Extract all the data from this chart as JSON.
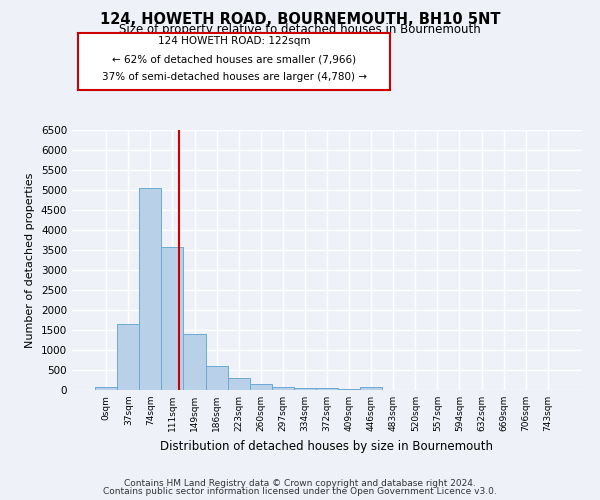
{
  "title": "124, HOWETH ROAD, BOURNEMOUTH, BH10 5NT",
  "subtitle": "Size of property relative to detached houses in Bournemouth",
  "xlabel": "Distribution of detached houses by size in Bournemouth",
  "ylabel": "Number of detached properties",
  "bar_labels": [
    "0sqm",
    "37sqm",
    "74sqm",
    "111sqm",
    "149sqm",
    "186sqm",
    "223sqm",
    "260sqm",
    "297sqm",
    "334sqm",
    "372sqm",
    "409sqm",
    "446sqm",
    "483sqm",
    "520sqm",
    "557sqm",
    "594sqm",
    "632sqm",
    "669sqm",
    "706sqm",
    "743sqm"
  ],
  "bar_values": [
    75,
    1650,
    5050,
    3570,
    1390,
    600,
    290,
    140,
    80,
    55,
    40,
    30,
    70,
    0,
    0,
    0,
    0,
    0,
    0,
    0,
    0
  ],
  "bar_color": "#b8d0e8",
  "bar_edge_color": "#6aaad4",
  "vline_x": 3.28,
  "vline_color": "#cc0000",
  "annotation_line1": "124 HOWETH ROAD: 122sqm",
  "annotation_line2": "← 62% of detached houses are smaller (7,966)",
  "annotation_line3": "37% of semi-detached houses are larger (4,780) →",
  "annotation_box_color": "#ffffff",
  "annotation_box_edge": "#cc0000",
  "ylim": [
    0,
    6500
  ],
  "yticks": [
    0,
    500,
    1000,
    1500,
    2000,
    2500,
    3000,
    3500,
    4000,
    4500,
    5000,
    5500,
    6000,
    6500
  ],
  "footer_line1": "Contains HM Land Registry data © Crown copyright and database right 2024.",
  "footer_line2": "Contains public sector information licensed under the Open Government Licence v3.0.",
  "background_color": "#eef2f8",
  "grid_color": "#ffffff"
}
